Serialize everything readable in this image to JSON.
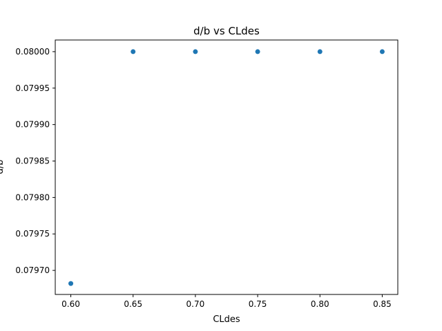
{
  "chart_data": {
    "type": "scatter",
    "title": "d/b vs CLdes",
    "xlabel": "CLdes",
    "ylabel": "d/b",
    "x": [
      0.6,
      0.65,
      0.7,
      0.75,
      0.8,
      0.85
    ],
    "y": [
      0.079682,
      0.08,
      0.08,
      0.08,
      0.08,
      0.08
    ],
    "xlim": [
      0.5875,
      0.8625
    ],
    "ylim": [
      0.079667,
      0.080016
    ],
    "x_ticks": [
      0.6,
      0.65,
      0.7,
      0.75,
      0.8,
      0.85
    ],
    "x_tick_labels": [
      "0.60",
      "0.65",
      "0.70",
      "0.75",
      "0.80",
      "0.85"
    ],
    "y_ticks": [
      0.0797,
      0.07975,
      0.0798,
      0.07985,
      0.0799,
      0.07995,
      0.08
    ],
    "y_tick_labels": [
      "0.07970",
      "0.07975",
      "0.07980",
      "0.07985",
      "0.07990",
      "0.07995",
      "0.08000"
    ],
    "grid": false,
    "marker_color": "#1f77b4"
  }
}
